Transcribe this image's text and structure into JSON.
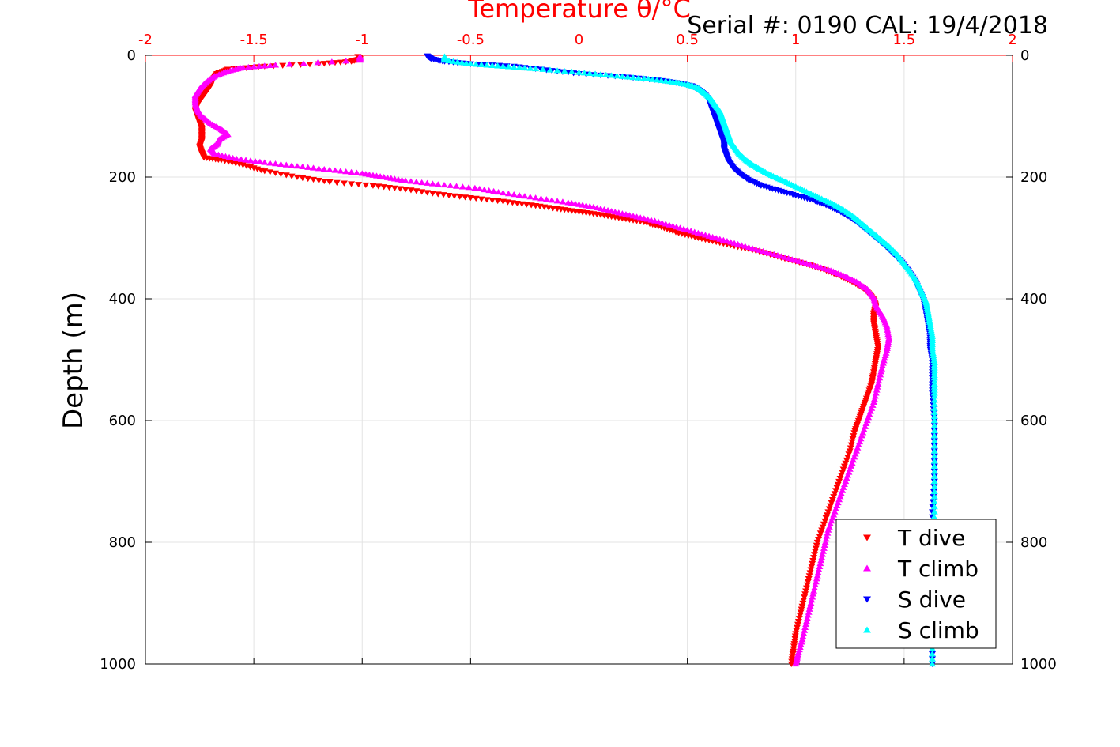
{
  "chart_data": {
    "type": "scatter",
    "title": "Temperature θ/°C",
    "annotation": "Serial #: 0190  CAL: 19/4/2018",
    "ylabel": "Depth (m)",
    "xlim": [
      -2,
      2
    ],
    "ylim": [
      0,
      1000
    ],
    "y_reversed": true,
    "grid": true,
    "legend_position": "bottom-right",
    "x_tick_labels": [
      "-2",
      "-1.5",
      "-1",
      "-0.5",
      "0",
      "0.5",
      "1",
      "1.5",
      "2"
    ],
    "y_tick_labels": [
      "0",
      "200",
      "400",
      "600",
      "800",
      "1000"
    ],
    "series": [
      {
        "name": "T dive",
        "color": "#ff0000",
        "marker": "triangle-down",
        "points": [
          [
            -1.02,
            2
          ],
          [
            -1.01,
            6
          ],
          [
            -1.05,
            10
          ],
          [
            -1.2,
            14
          ],
          [
            -1.45,
            18
          ],
          [
            -1.62,
            23
          ],
          [
            -1.67,
            30
          ],
          [
            -1.69,
            40
          ],
          [
            -1.7,
            50
          ],
          [
            -1.72,
            60
          ],
          [
            -1.74,
            70
          ],
          [
            -1.76,
            80
          ],
          [
            -1.77,
            90
          ],
          [
            -1.76,
            100
          ],
          [
            -1.75,
            110
          ],
          [
            -1.74,
            120
          ],
          [
            -1.74,
            130
          ],
          [
            -1.74,
            140
          ],
          [
            -1.75,
            150
          ],
          [
            -1.74,
            160
          ],
          [
            -1.73,
            168
          ],
          [
            -1.65,
            172
          ],
          [
            -1.55,
            180
          ],
          [
            -1.45,
            190
          ],
          [
            -1.3,
            200
          ],
          [
            -1.15,
            208
          ],
          [
            -0.95,
            214
          ],
          [
            -0.8,
            220
          ],
          [
            -0.65,
            228
          ],
          [
            -0.5,
            234
          ],
          [
            -0.35,
            240
          ],
          [
            -0.22,
            246
          ],
          [
            -0.1,
            252
          ],
          [
            0.0,
            257
          ],
          [
            0.1,
            262
          ],
          [
            0.2,
            268
          ],
          [
            0.3,
            274
          ],
          [
            0.38,
            282
          ],
          [
            0.46,
            292
          ],
          [
            0.55,
            300
          ],
          [
            0.65,
            308
          ],
          [
            0.75,
            316
          ],
          [
            0.85,
            324
          ],
          [
            0.95,
            334
          ],
          [
            1.05,
            343
          ],
          [
            1.13,
            352
          ],
          [
            1.2,
            362
          ],
          [
            1.26,
            372
          ],
          [
            1.31,
            382
          ],
          [
            1.34,
            392
          ],
          [
            1.36,
            402
          ],
          [
            1.37,
            412
          ],
          [
            1.36,
            425
          ],
          [
            1.36,
            440
          ],
          [
            1.37,
            460
          ],
          [
            1.38,
            480
          ],
          [
            1.37,
            500
          ],
          [
            1.36,
            520
          ],
          [
            1.35,
            540
          ],
          [
            1.33,
            560
          ],
          [
            1.31,
            580
          ],
          [
            1.29,
            600
          ],
          [
            1.27,
            620
          ],
          [
            1.25,
            650
          ],
          [
            1.22,
            680
          ],
          [
            1.19,
            710
          ],
          [
            1.16,
            740
          ],
          [
            1.13,
            770
          ],
          [
            1.1,
            800
          ],
          [
            1.08,
            830
          ],
          [
            1.06,
            860
          ],
          [
            1.04,
            890
          ],
          [
            1.02,
            920
          ],
          [
            1.0,
            950
          ],
          [
            0.99,
            975
          ],
          [
            0.98,
            1000
          ]
        ]
      },
      {
        "name": "T climb",
        "color": "#ff00ff",
        "marker": "triangle-up",
        "points": [
          [
            -1.01,
            2
          ],
          [
            -1.01,
            8
          ],
          [
            -1.4,
            16
          ],
          [
            -1.55,
            20
          ],
          [
            -1.62,
            26
          ],
          [
            -1.68,
            34
          ],
          [
            -1.72,
            44
          ],
          [
            -1.75,
            55
          ],
          [
            -1.77,
            66
          ],
          [
            -1.77,
            78
          ],
          [
            -1.76,
            90
          ],
          [
            -1.74,
            100
          ],
          [
            -1.7,
            112
          ],
          [
            -1.65,
            122
          ],
          [
            -1.62,
            130
          ],
          [
            -1.66,
            138
          ],
          [
            -1.67,
            146
          ],
          [
            -1.7,
            154
          ],
          [
            -1.68,
            162
          ],
          [
            -1.58,
            170
          ],
          [
            -1.45,
            176
          ],
          [
            -1.3,
            182
          ],
          [
            -1.15,
            188
          ],
          [
            -1.0,
            194
          ],
          [
            -0.9,
            200
          ],
          [
            -0.8,
            206
          ],
          [
            -0.65,
            212
          ],
          [
            -0.48,
            218
          ],
          [
            -0.35,
            226
          ],
          [
            -0.2,
            234
          ],
          [
            -0.05,
            242
          ],
          [
            0.05,
            248
          ],
          [
            0.15,
            256
          ],
          [
            0.25,
            264
          ],
          [
            0.35,
            272
          ],
          [
            0.45,
            282
          ],
          [
            0.55,
            292
          ],
          [
            0.65,
            302
          ],
          [
            0.75,
            312
          ],
          [
            0.85,
            322
          ],
          [
            0.95,
            332
          ],
          [
            1.05,
            342
          ],
          [
            1.15,
            352
          ],
          [
            1.22,
            362
          ],
          [
            1.28,
            372
          ],
          [
            1.33,
            384
          ],
          [
            1.36,
            398
          ],
          [
            1.37,
            412
          ],
          [
            1.4,
            428
          ],
          [
            1.42,
            445
          ],
          [
            1.43,
            465
          ],
          [
            1.42,
            485
          ],
          [
            1.4,
            510
          ],
          [
            1.38,
            540
          ],
          [
            1.36,
            570
          ],
          [
            1.33,
            600
          ],
          [
            1.3,
            630
          ],
          [
            1.27,
            660
          ],
          [
            1.24,
            690
          ],
          [
            1.21,
            720
          ],
          [
            1.18,
            750
          ],
          [
            1.15,
            780
          ],
          [
            1.13,
            810
          ],
          [
            1.11,
            840
          ],
          [
            1.09,
            870
          ],
          [
            1.07,
            900
          ],
          [
            1.05,
            930
          ],
          [
            1.03,
            960
          ],
          [
            1.01,
            985
          ],
          [
            1.0,
            1000
          ]
        ]
      },
      {
        "name": "S dive",
        "color": "#0000ff",
        "marker": "triangle-down",
        "points": [
          [
            -0.7,
            1
          ],
          [
            -0.68,
            6
          ],
          [
            -0.62,
            10
          ],
          [
            -0.5,
            14
          ],
          [
            -0.3,
            18
          ],
          [
            -0.15,
            24
          ],
          [
            0.0,
            30
          ],
          [
            0.2,
            35
          ],
          [
            0.35,
            40
          ],
          [
            0.45,
            45
          ],
          [
            0.52,
            50
          ],
          [
            0.55,
            56
          ],
          [
            0.58,
            64
          ],
          [
            0.6,
            74
          ],
          [
            0.61,
            84
          ],
          [
            0.62,
            94
          ],
          [
            0.63,
            104
          ],
          [
            0.64,
            114
          ],
          [
            0.65,
            124
          ],
          [
            0.66,
            134
          ],
          [
            0.67,
            144
          ],
          [
            0.67,
            154
          ],
          [
            0.68,
            164
          ],
          [
            0.69,
            174
          ],
          [
            0.71,
            184
          ],
          [
            0.74,
            194
          ],
          [
            0.78,
            204
          ],
          [
            0.84,
            214
          ],
          [
            0.92,
            222
          ],
          [
            1.0,
            230
          ],
          [
            1.08,
            238
          ],
          [
            1.14,
            246
          ],
          [
            1.2,
            256
          ],
          [
            1.25,
            266
          ],
          [
            1.29,
            276
          ],
          [
            1.33,
            288
          ],
          [
            1.37,
            300
          ],
          [
            1.41,
            312
          ],
          [
            1.45,
            326
          ],
          [
            1.49,
            340
          ],
          [
            1.52,
            354
          ],
          [
            1.55,
            370
          ],
          [
            1.57,
            386
          ],
          [
            1.59,
            402
          ],
          [
            1.6,
            420
          ],
          [
            1.61,
            440
          ],
          [
            1.62,
            460
          ],
          [
            1.62,
            480
          ],
          [
            1.63,
            500
          ],
          [
            1.63,
            530
          ],
          [
            1.63,
            560
          ],
          [
            1.64,
            600
          ],
          [
            1.64,
            650
          ],
          [
            1.64,
            700
          ],
          [
            1.63,
            750
          ],
          [
            1.63,
            800
          ],
          [
            1.63,
            850
          ],
          [
            1.63,
            900
          ],
          [
            1.63,
            950
          ],
          [
            1.63,
            1000
          ]
        ]
      },
      {
        "name": "S climb",
        "color": "#00ffff",
        "marker": "triangle-up",
        "points": [
          [
            -0.62,
            2
          ],
          [
            -0.62,
            8
          ],
          [
            -0.5,
            14
          ],
          [
            -0.35,
            18
          ],
          [
            -0.2,
            22
          ],
          [
            0.0,
            28
          ],
          [
            0.15,
            33
          ],
          [
            0.3,
            38
          ],
          [
            0.42,
            43
          ],
          [
            0.5,
            48
          ],
          [
            0.55,
            54
          ],
          [
            0.58,
            62
          ],
          [
            0.61,
            72
          ],
          [
            0.63,
            82
          ],
          [
            0.65,
            92
          ],
          [
            0.66,
            102
          ],
          [
            0.67,
            112
          ],
          [
            0.68,
            122
          ],
          [
            0.69,
            132
          ],
          [
            0.7,
            142
          ],
          [
            0.72,
            152
          ],
          [
            0.74,
            162
          ],
          [
            0.77,
            172
          ],
          [
            0.8,
            180
          ],
          [
            0.84,
            188
          ],
          [
            0.88,
            196
          ],
          [
            0.93,
            204
          ],
          [
            0.99,
            214
          ],
          [
            1.05,
            224
          ],
          [
            1.11,
            234
          ],
          [
            1.17,
            244
          ],
          [
            1.22,
            254
          ],
          [
            1.27,
            266
          ],
          [
            1.31,
            278
          ],
          [
            1.35,
            290
          ],
          [
            1.39,
            302
          ],
          [
            1.43,
            314
          ],
          [
            1.47,
            328
          ],
          [
            1.5,
            342
          ],
          [
            1.53,
            356
          ],
          [
            1.56,
            372
          ],
          [
            1.58,
            388
          ],
          [
            1.6,
            404
          ],
          [
            1.61,
            422
          ],
          [
            1.62,
            442
          ],
          [
            1.63,
            462
          ],
          [
            1.63,
            482
          ],
          [
            1.64,
            505
          ],
          [
            1.64,
            530
          ],
          [
            1.64,
            560
          ],
          [
            1.64,
            600
          ],
          [
            1.64,
            650
          ],
          [
            1.64,
            700
          ],
          [
            1.64,
            750
          ],
          [
            1.63,
            800
          ],
          [
            1.63,
            850
          ],
          [
            1.63,
            900
          ],
          [
            1.63,
            950
          ],
          [
            1.63,
            1000
          ]
        ]
      }
    ]
  }
}
